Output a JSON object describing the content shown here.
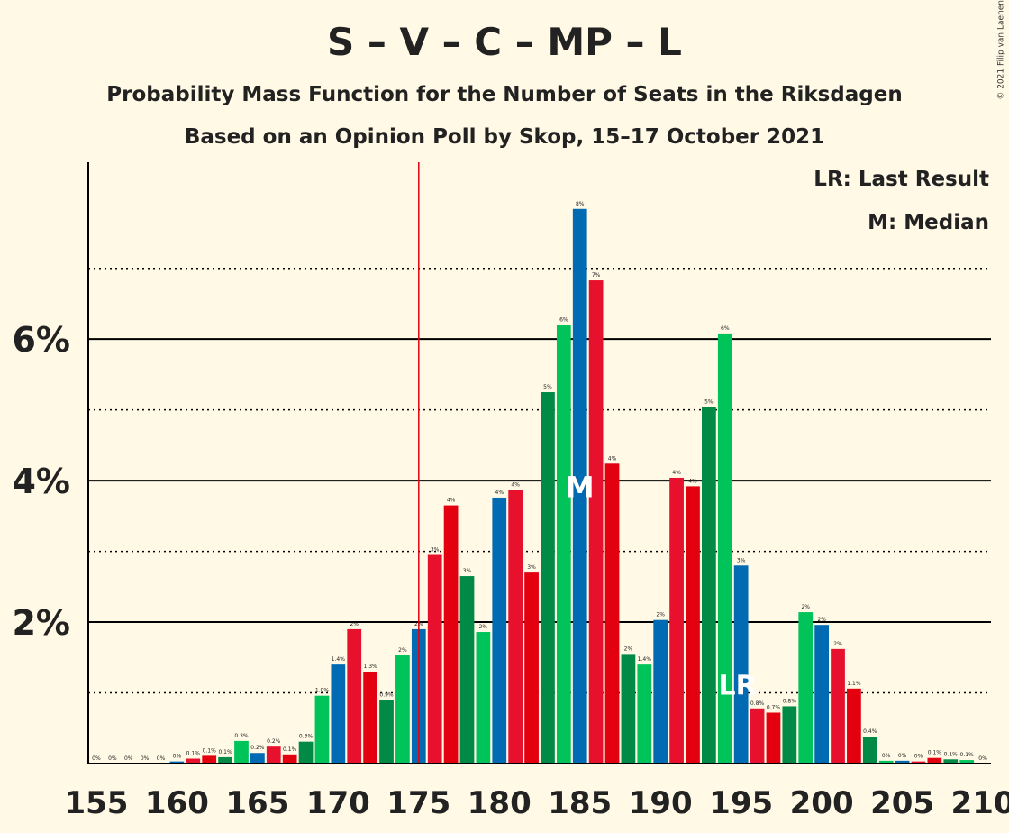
{
  "title": "S – V – C – MP – L",
  "subtitle": "Probability Mass Function for the Number of Seats in the Riksdagen",
  "subtitle2": "Based on an Opinion Poll by Skop, 15–17 October 2021",
  "copyright": "© 2021 Filip van Laenen",
  "legend": {
    "lr": "LR: Last Result",
    "m": "M: Median"
  },
  "colors": {
    "background": "#fff9e5",
    "majority_line": "#e3000f",
    "palette": [
      "#e8112d",
      "#e3000f",
      "#008a45",
      "#00c45a",
      "#006ab3"
    ]
  },
  "chart_data": {
    "type": "bar",
    "x": [
      155,
      156,
      157,
      158,
      159,
      160,
      161,
      162,
      163,
      164,
      165,
      166,
      167,
      168,
      169,
      170,
      171,
      172,
      173,
      174,
      175,
      176,
      177,
      178,
      179,
      180,
      181,
      182,
      183,
      184,
      185,
      186,
      187,
      188,
      189,
      190,
      191,
      192,
      193,
      194,
      195,
      196,
      197,
      198,
      199,
      200,
      201,
      202,
      203,
      204,
      205,
      206,
      207,
      208,
      209
    ],
    "values": [
      0,
      0,
      0,
      0,
      0,
      0.03,
      0.07,
      0.11,
      0.09,
      0.32,
      0.15,
      0.24,
      0.13,
      0.31,
      0.96,
      1.4,
      1.9,
      1.3,
      0.9,
      1.53,
      1.9,
      2.95,
      3.65,
      2.65,
      1.86,
      3.76,
      3.87,
      2.7,
      5.25,
      6.2,
      7.84,
      6.83,
      4.24,
      1.55,
      1.4,
      2.03,
      4.04,
      3.92,
      5.04,
      6.08,
      2.8,
      0.78,
      0.72,
      0.81,
      2.14,
      1.96,
      1.62,
      1.06,
      0.38,
      0.04,
      0.04,
      0.03,
      0.08,
      0.06,
      0.05
    ],
    "labels": [
      "0%",
      "0%",
      "0%",
      "0%",
      "0%",
      "0%",
      "0.1%",
      "0.1%",
      "0.1%",
      "0.3%",
      "0.2%",
      "0.2%",
      "0.1%",
      "0.3%",
      "1.0%",
      "1.4%",
      "2%",
      "1.3%",
      "0.9%",
      "2%",
      "2%",
      "3%",
      "4%",
      "3%",
      "2%",
      "4%",
      "4%",
      "3%",
      "5%",
      "6%",
      "8%",
      "7%",
      "4%",
      "2%",
      "1.4%",
      "2%",
      "4%",
      "4%",
      "5%",
      "6%",
      "3%",
      "0.8%",
      "0.7%",
      "0.8%",
      "2%",
      "2%",
      "2%",
      "1.1%",
      "0.4%",
      "0%",
      "0%",
      "0%",
      "0.1%",
      "0.1%",
      "0.1%"
    ],
    "color_index": [
      4,
      0,
      1,
      2,
      3,
      4,
      0,
      1,
      2,
      3,
      4,
      0,
      1,
      2,
      3,
      4,
      0,
      1,
      2,
      3,
      4,
      0,
      1,
      2,
      3,
      4,
      0,
      1,
      2,
      3,
      4,
      0,
      1,
      2,
      3,
      4,
      0,
      1,
      2,
      3,
      4,
      0,
      1,
      2,
      3,
      4,
      0,
      1,
      2,
      3,
      4,
      0,
      1,
      2,
      3
    ],
    "last_label": {
      "seat": 210,
      "label": "0%"
    },
    "xticks": [
      155,
      160,
      165,
      170,
      175,
      180,
      185,
      190,
      195,
      200,
      205,
      210
    ],
    "yticks": [
      {
        "value": 2,
        "label": "2%"
      },
      {
        "value": 4,
        "label": "4%"
      },
      {
        "value": 6,
        "label": "6%"
      }
    ],
    "ydotted": [
      1,
      3,
      5,
      7
    ],
    "ylim": [
      0,
      8.5
    ],
    "xlim": [
      154.5,
      210.5
    ],
    "majority_line": 175,
    "median": {
      "seat": 185,
      "label": "M"
    },
    "last_result": {
      "seat": 195,
      "label": "LR"
    },
    "grid": true,
    "legend_position": "top-right"
  }
}
